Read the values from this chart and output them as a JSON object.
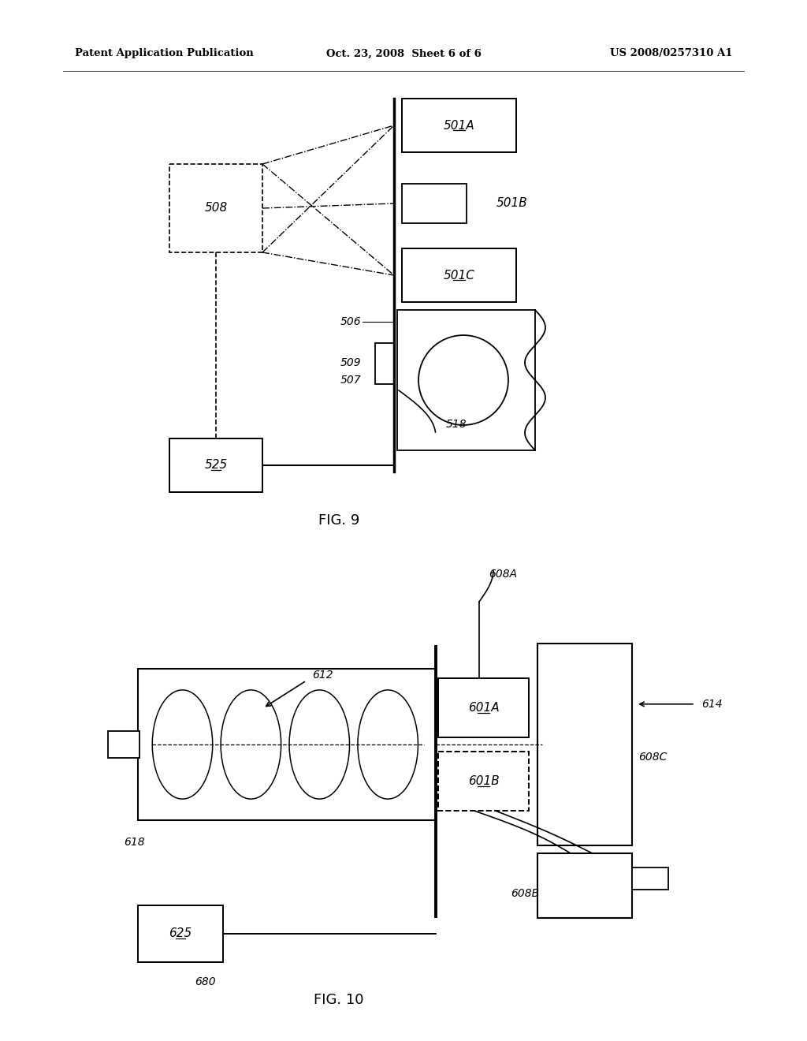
{
  "bg_color": "#ffffff",
  "lc": "#000000",
  "header_left": "Patent Application Publication",
  "header_center": "Oct. 23, 2008  Sheet 6 of 6",
  "header_right": "US 2008/0257310 A1",
  "fig9_caption": "FIG. 9",
  "fig10_caption": "FIG. 10"
}
